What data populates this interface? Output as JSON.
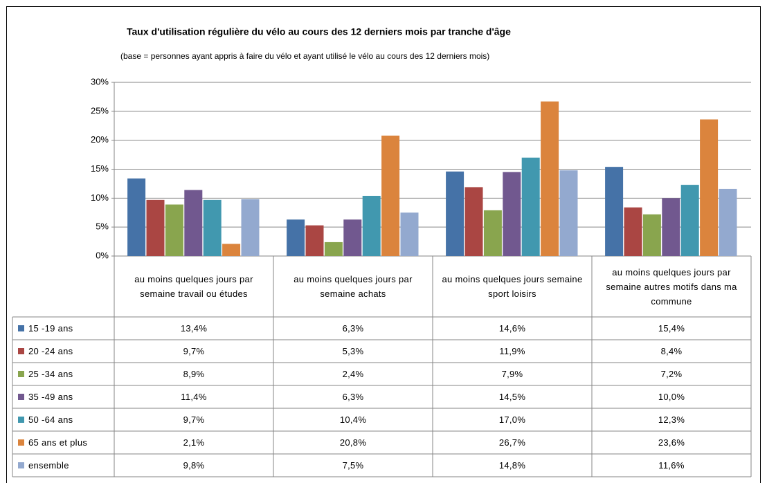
{
  "chart_data": {
    "type": "bar",
    "title": "Taux d'utilisation régulière du vélo au cours des 12 derniers mois par tranche d'âge",
    "subtitle": "(base = personnes ayant appris à faire du vélo et ayant utilisé le vélo au cours des 12 derniers mois)",
    "categories": [
      "au moins quelques jours par semaine travail ou études",
      "au moins quelques jours par semaine achats",
      "au moins quelques jours semaine sport loisirs",
      "au moins quelques jours par semaine autres motifs dans ma commune"
    ],
    "ylim": [
      0,
      30
    ],
    "yticks": [
      {
        "value": 0,
        "label": "0%"
      },
      {
        "value": 5,
        "label": "5%"
      },
      {
        "value": 10,
        "label": "10%"
      },
      {
        "value": 15,
        "label": "15%"
      },
      {
        "value": 20,
        "label": "20%"
      },
      {
        "value": 25,
        "label": "25%"
      },
      {
        "value": 30,
        "label": "30%"
      }
    ],
    "grid": true,
    "series": [
      {
        "name": "15 -19 ans",
        "color": "#4572a7",
        "values": [
          13.4,
          6.3,
          14.6,
          15.4
        ],
        "value_labels": [
          "13,4%",
          "6,3%",
          "14,6%",
          "15,4%"
        ]
      },
      {
        "name": "20 -24 ans",
        "color": "#aa4643",
        "values": [
          9.7,
          5.3,
          11.9,
          8.4
        ],
        "value_labels": [
          "9,7%",
          "5,3%",
          "11,9%",
          "8,4%"
        ]
      },
      {
        "name": "25 -34 ans",
        "color": "#89a54e",
        "values": [
          8.9,
          2.4,
          7.9,
          7.2
        ],
        "value_labels": [
          "8,9%",
          "2,4%",
          "7,9%",
          "7,2%"
        ]
      },
      {
        "name": "35 -49 ans",
        "color": "#71588f",
        "values": [
          11.4,
          6.3,
          14.5,
          10.0
        ],
        "value_labels": [
          "11,4%",
          "6,3%",
          "14,5%",
          "10,0%"
        ]
      },
      {
        "name": "50 -64 ans",
        "color": "#4198af",
        "values": [
          9.7,
          10.4,
          17.0,
          12.3
        ],
        "value_labels": [
          "9,7%",
          "10,4%",
          "17,0%",
          "12,3%"
        ]
      },
      {
        "name": "65 ans et plus",
        "color": "#db843d",
        "values": [
          2.1,
          20.8,
          26.7,
          23.6
        ],
        "value_labels": [
          "2,1%",
          "20,8%",
          "26,7%",
          "23,6%"
        ]
      },
      {
        "name": "ensemble",
        "color": "#93a9cf",
        "values": [
          9.8,
          7.5,
          14.8,
          11.6
        ],
        "value_labels": [
          "9,8%",
          "7,5%",
          "14,8%",
          "11,6%"
        ]
      }
    ]
  }
}
